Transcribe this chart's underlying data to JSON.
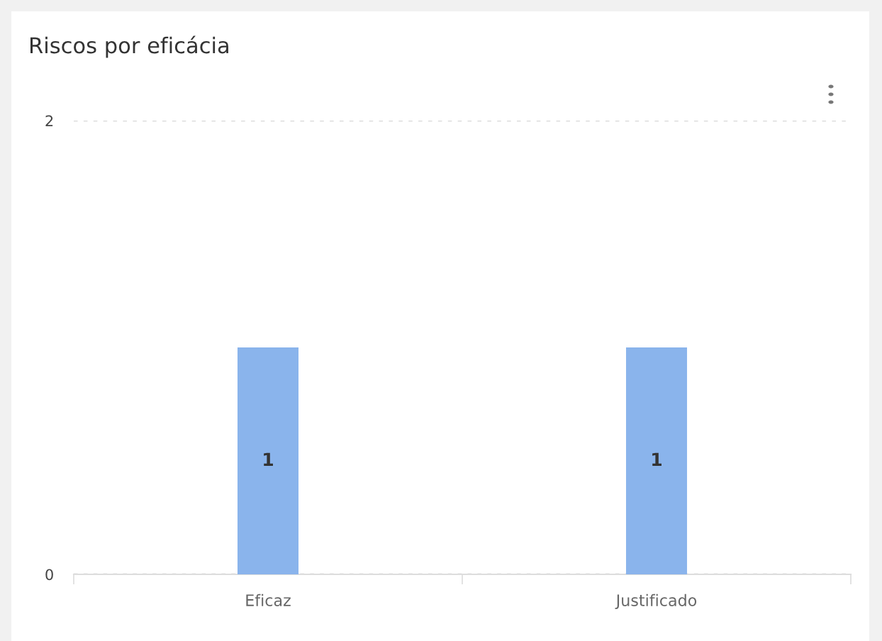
{
  "chart_data": {
    "type": "bar",
    "title": "Riscos por eficácia",
    "categories": [
      "Eficaz",
      "Justificado"
    ],
    "values": [
      1,
      1
    ],
    "color": "#8ab4ec",
    "ylim": [
      0,
      2
    ],
    "yticks": [
      0,
      2
    ],
    "grid": "y",
    "data_labels": true
  }
}
